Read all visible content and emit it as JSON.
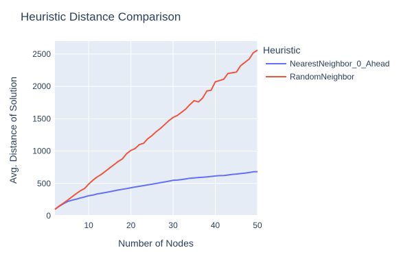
{
  "chart_data": {
    "type": "line",
    "title": "Heuristic Distance Comparison",
    "xlabel": "Number of Nodes",
    "ylabel": "Avg. Distance of Solution",
    "xlim": [
      2,
      50
    ],
    "ylim": [
      0,
      2700
    ],
    "x_ticks": [
      10,
      20,
      30,
      40,
      50
    ],
    "y_ticks": [
      0,
      500,
      1000,
      1500,
      2000,
      2500
    ],
    "grid": true,
    "legend_title": "Heuristic",
    "legend_position": "right",
    "x": [
      2,
      3,
      4,
      5,
      6,
      7,
      8,
      9,
      10,
      11,
      12,
      13,
      14,
      15,
      16,
      17,
      18,
      19,
      20,
      21,
      22,
      23,
      24,
      25,
      26,
      27,
      28,
      29,
      30,
      31,
      32,
      33,
      34,
      35,
      36,
      37,
      38,
      39,
      40,
      41,
      42,
      43,
      44,
      45,
      46,
      47,
      48,
      49,
      50
    ],
    "series": [
      {
        "name": "NearestNeighbor_0_Ahead",
        "color": "#636efa",
        "values": [
          100,
          145,
          185,
          220,
          240,
          255,
          275,
          290,
          310,
          320,
          338,
          348,
          360,
          372,
          385,
          398,
          410,
          420,
          433,
          445,
          455,
          466,
          478,
          488,
          500,
          512,
          523,
          535,
          548,
          552,
          560,
          570,
          580,
          585,
          592,
          595,
          600,
          608,
          615,
          620,
          622,
          630,
          640,
          645,
          652,
          660,
          668,
          680,
          682
        ]
      },
      {
        "name": "RandomNeighbor",
        "color": "#ef553b",
        "values": [
          100,
          150,
          195,
          240,
          290,
          340,
          385,
          420,
          490,
          550,
          600,
          640,
          690,
          740,
          790,
          840,
          880,
          960,
          1010,
          1040,
          1100,
          1120,
          1190,
          1240,
          1300,
          1350,
          1410,
          1470,
          1520,
          1550,
          1600,
          1650,
          1720,
          1780,
          1760,
          1820,
          1930,
          1940,
          2070,
          2090,
          2110,
          2200,
          2210,
          2220,
          2320,
          2370,
          2420,
          2520,
          2560
        ]
      }
    ]
  }
}
